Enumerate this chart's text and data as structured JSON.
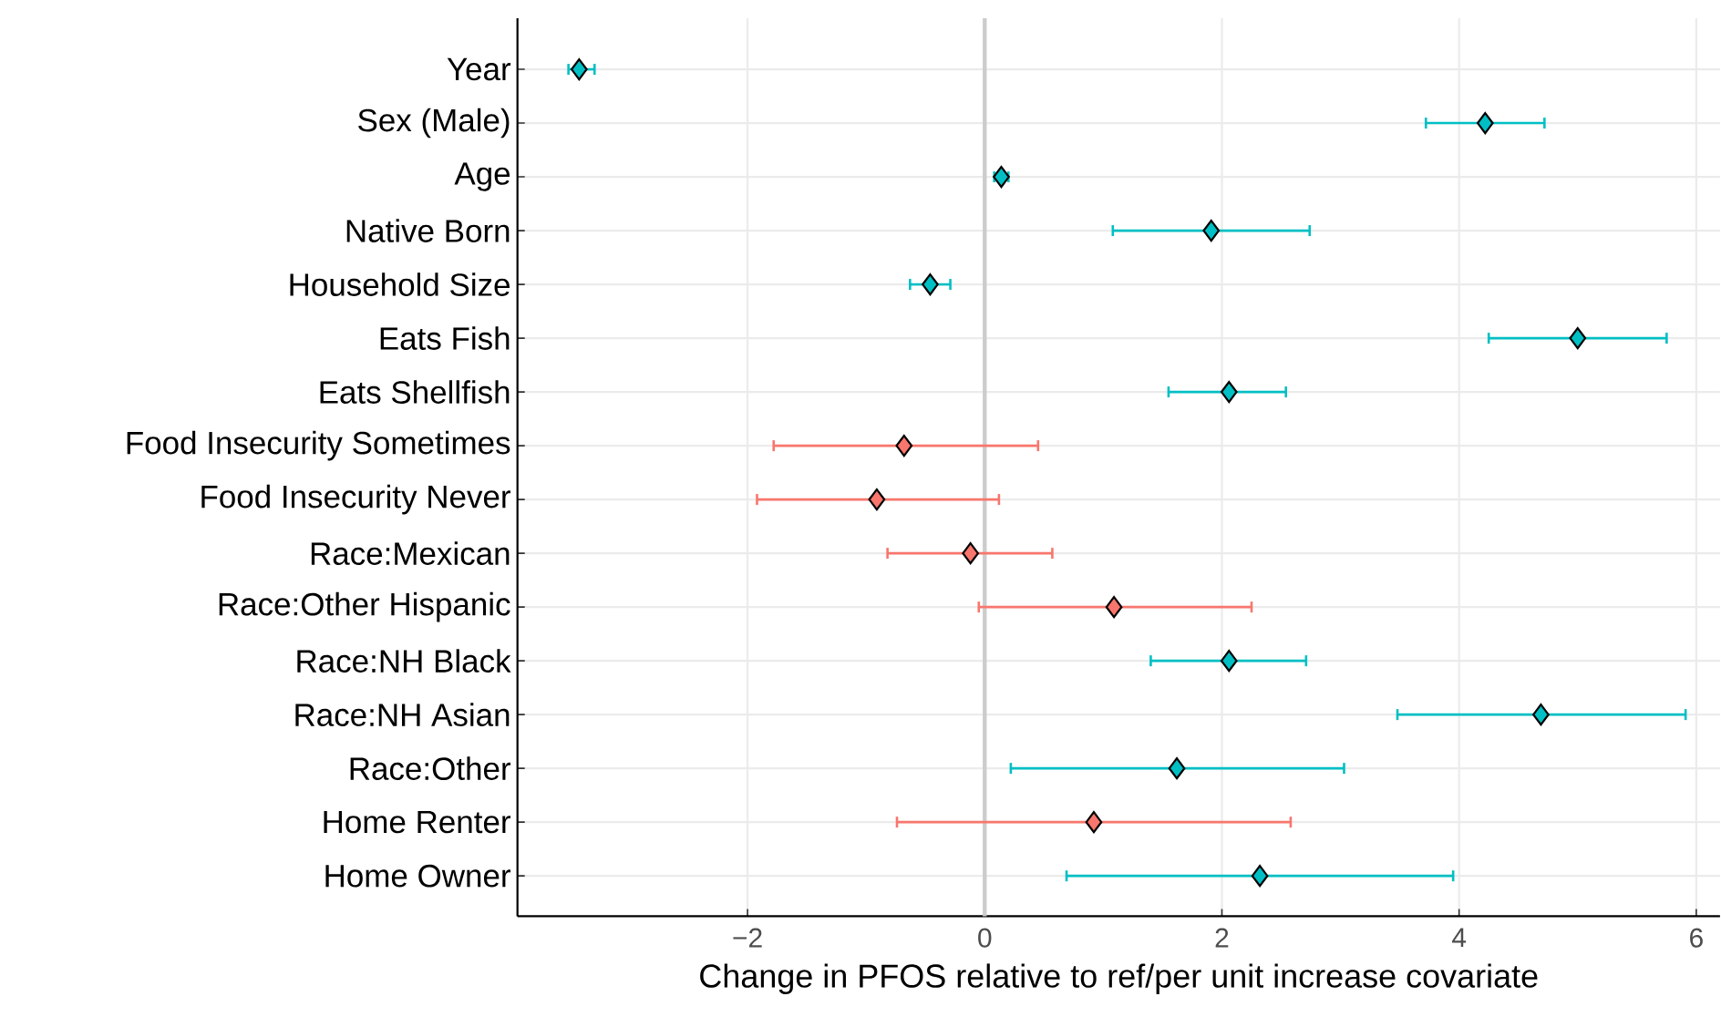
{
  "chart_data": {
    "type": "scatter",
    "orientation": "horizontal",
    "xlabel": "Change in PFOS relative to ref/per unit increase covariate",
    "categories": [
      "Year",
      "Sex (Male)",
      "Age",
      "Native Born",
      "Household Size",
      "Eats Fish",
      "Eats Shellfish",
      "Food Insecurity Sometimes",
      "Food Insecurity Never",
      "Race:Mexican",
      "Race:Other Hispanic",
      "Race:NH Black",
      "Race:NH Asian",
      "Race:Other",
      "Home Renter",
      "Home Owner"
    ],
    "values": [
      -3.42,
      4.22,
      0.14,
      1.91,
      -0.46,
      5.0,
      2.06,
      -0.68,
      -0.91,
      -0.12,
      1.09,
      2.06,
      4.69,
      1.62,
      0.92,
      2.32
    ],
    "errors": [
      [
        -3.51,
        -3.29
      ],
      [
        3.72,
        4.72
      ],
      [
        0.08,
        0.2
      ],
      [
        1.08,
        2.74
      ],
      [
        -0.63,
        -0.29
      ],
      [
        4.25,
        5.75
      ],
      [
        1.55,
        2.54
      ],
      [
        -1.78,
        0.45
      ],
      [
        -1.92,
        0.12
      ],
      [
        -0.82,
        0.57
      ],
      [
        -0.05,
        2.25
      ],
      [
        1.4,
        2.71
      ],
      [
        3.48,
        5.91
      ],
      [
        0.22,
        3.03
      ],
      [
        -0.74,
        2.58
      ],
      [
        0.69,
        3.95
      ]
    ],
    "colors": [
      "#00bfc4",
      "#00bfc4",
      "#00bfc4",
      "#00bfc4",
      "#00bfc4",
      "#00bfc4",
      "#00bfc4",
      "#f8766d",
      "#f8766d",
      "#f8766d",
      "#f8766d",
      "#00bfc4",
      "#00bfc4",
      "#00bfc4",
      "#f8766d",
      "#00bfc4"
    ],
    "marker": "diamond",
    "xlim": [
      -3.94,
      6.2
    ],
    "xticks": [
      {
        "value": -2,
        "label": "−2"
      },
      0,
      2,
      4,
      6
    ],
    "ref_lines": [
      {
        "axis": "x",
        "value": 0,
        "color": "#cccccc"
      }
    ],
    "grid": true
  }
}
